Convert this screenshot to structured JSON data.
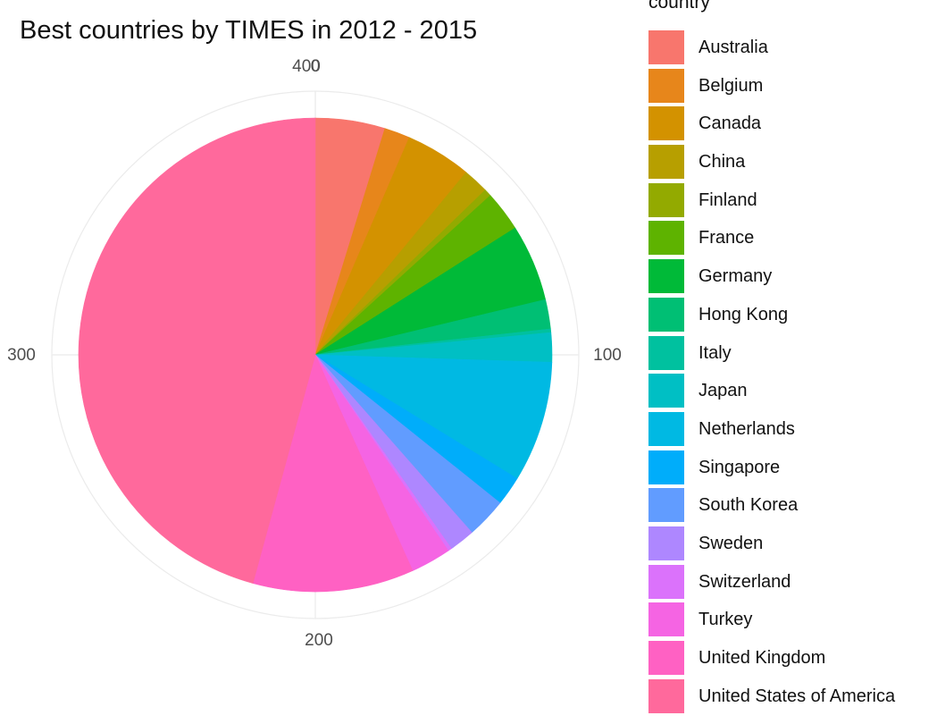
{
  "chart_data": {
    "type": "pie",
    "title": "Best countries by TIMES in 2012 - 2015",
    "legend_title": "country",
    "legend_position": "right",
    "grid": true,
    "theta_range": [
      0,
      400
    ],
    "theta_ticks": [
      "0",
      "100",
      "200",
      "300",
      "400"
    ],
    "slices": [
      {
        "name": "Australia",
        "value": 19,
        "color": "#F8766D"
      },
      {
        "name": "Belgium",
        "value": 7,
        "color": "#E7861B"
      },
      {
        "name": "Canada",
        "value": 18,
        "color": "#D39200"
      },
      {
        "name": "China",
        "value": 7,
        "color": "#B79F00"
      },
      {
        "name": "Finland",
        "value": 2,
        "color": "#93AA00"
      },
      {
        "name": "France",
        "value": 11,
        "color": "#5EB300"
      },
      {
        "name": "Germany",
        "value": 21,
        "color": "#00BA38"
      },
      {
        "name": "Hong Kong",
        "value": 8,
        "color": "#00BF74"
      },
      {
        "name": "Italy",
        "value": 1,
        "color": "#00C19F"
      },
      {
        "name": "Japan",
        "value": 8,
        "color": "#00BFC4"
      },
      {
        "name": "Netherlands",
        "value": 33,
        "color": "#00B9E3"
      },
      {
        "name": "Singapore",
        "value": 8,
        "color": "#00ADFA"
      },
      {
        "name": "South Korea",
        "value": 11,
        "color": "#619CFF"
      },
      {
        "name": "Sweden",
        "value": 7,
        "color": "#AE87FF"
      },
      {
        "name": "Switzerland",
        "value": 1,
        "color": "#DB72FB"
      },
      {
        "name": "Turkey",
        "value": 11,
        "color": "#F564E3"
      },
      {
        "name": "United Kingdom",
        "value": 44,
        "color": "#FF61C3"
      },
      {
        "name": "United States of America",
        "value": 183,
        "color": "#FF699C"
      }
    ]
  }
}
